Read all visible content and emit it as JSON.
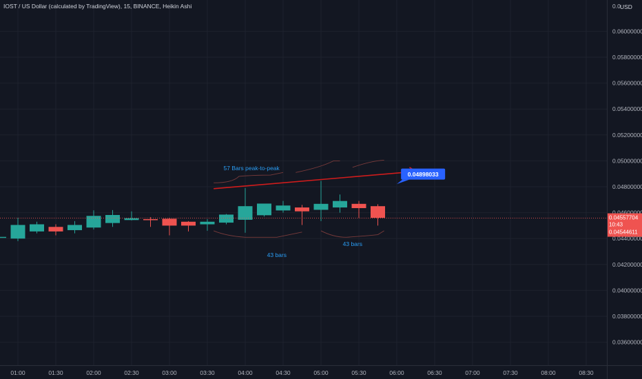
{
  "header": {
    "symbol_line": "IOST / US Dollar (calculated by TradingView), 15, BINANCE, Heikin Ashi",
    "currency": "USD"
  },
  "colors": {
    "background": "#131722",
    "grid": "#1e222d",
    "axis_text": "#b2b5be",
    "up": "#26a69a",
    "down": "#ef5350",
    "trendline": "#d11c1c",
    "annotation": "#2a9df4",
    "callout": "#2962ff",
    "price_label": "#ef5350"
  },
  "chart_data": {
    "type": "candlestick",
    "title": "IOST / US Dollar (calculated by TradingView), 15, BINANCE, Heikin Ashi",
    "x_axis": {
      "labels": [
        "01:00",
        "01:30",
        "02:00",
        "02:30",
        "03:00",
        "03:30",
        "04:00",
        "04:30",
        "05:00",
        "05:30",
        "06:00",
        "06:30",
        "07:00",
        "07:30",
        "08:00",
        "08:30"
      ]
    },
    "y_axis": {
      "ticks": [
        "0.06000000",
        "0.05800000",
        "0.05600000",
        "0.05400000",
        "0.05200000",
        "0.05000000",
        "0.04800000",
        "0.04600000",
        "0.04400000",
        "0.04200000",
        "0.04000000",
        "0.03800000",
        "0.03600000"
      ],
      "top_label": "0.0",
      "range": [
        0.0351,
        0.0622
      ]
    },
    "grid": true,
    "candles": [
      {
        "time": "00:45",
        "open": 0.04413,
        "high": 0.04413,
        "low": 0.044,
        "close": 0.04413,
        "dir": "up"
      },
      {
        "time": "01:00",
        "open": 0.044,
        "high": 0.0456,
        "low": 0.0438,
        "close": 0.04505,
        "dir": "up"
      },
      {
        "time": "01:15",
        "open": 0.04455,
        "high": 0.0453,
        "low": 0.0444,
        "close": 0.0451,
        "dir": "up"
      },
      {
        "time": "01:30",
        "open": 0.0449,
        "high": 0.0451,
        "low": 0.04425,
        "close": 0.04455,
        "dir": "down"
      },
      {
        "time": "01:45",
        "open": 0.04465,
        "high": 0.04535,
        "low": 0.0444,
        "close": 0.04505,
        "dir": "up"
      },
      {
        "time": "02:00",
        "open": 0.04485,
        "high": 0.04618,
        "low": 0.0447,
        "close": 0.04575,
        "dir": "up"
      },
      {
        "time": "02:15",
        "open": 0.0452,
        "high": 0.0462,
        "low": 0.0449,
        "close": 0.04582,
        "dir": "up"
      },
      {
        "time": "02:30",
        "open": 0.04543,
        "high": 0.0461,
        "low": 0.0454,
        "close": 0.04557,
        "dir": "up"
      },
      {
        "time": "02:45",
        "open": 0.0455,
        "high": 0.04565,
        "low": 0.0449,
        "close": 0.04545,
        "dir": "down"
      },
      {
        "time": "03:00",
        "open": 0.04553,
        "high": 0.0456,
        "low": 0.04425,
        "close": 0.045,
        "dir": "down"
      },
      {
        "time": "03:15",
        "open": 0.0453,
        "high": 0.04535,
        "low": 0.04455,
        "close": 0.045,
        "dir": "down"
      },
      {
        "time": "03:30",
        "open": 0.0451,
        "high": 0.0455,
        "low": 0.0446,
        "close": 0.0453,
        "dir": "up"
      },
      {
        "time": "03:45",
        "open": 0.04523,
        "high": 0.0459,
        "low": 0.0451,
        "close": 0.04585,
        "dir": "up"
      },
      {
        "time": "04:00",
        "open": 0.04545,
        "high": 0.0479,
        "low": 0.04445,
        "close": 0.0465,
        "dir": "up"
      },
      {
        "time": "04:15",
        "open": 0.0458,
        "high": 0.04665,
        "low": 0.0457,
        "close": 0.0467,
        "dir": "up"
      },
      {
        "time": "04:30",
        "open": 0.04617,
        "high": 0.0469,
        "low": 0.046,
        "close": 0.04655,
        "dir": "up"
      },
      {
        "time": "04:45",
        "open": 0.0464,
        "high": 0.0466,
        "low": 0.04505,
        "close": 0.0461,
        "dir": "down"
      },
      {
        "time": "05:00",
        "open": 0.04622,
        "high": 0.04845,
        "low": 0.04535,
        "close": 0.04668,
        "dir": "up"
      },
      {
        "time": "05:15",
        "open": 0.0464,
        "high": 0.0474,
        "low": 0.046,
        "close": 0.0469,
        "dir": "up"
      },
      {
        "time": "05:30",
        "open": 0.04668,
        "high": 0.0469,
        "low": 0.0456,
        "close": 0.04635,
        "dir": "down"
      },
      {
        "time": "05:45",
        "open": 0.0465,
        "high": 0.04665,
        "low": 0.045,
        "close": 0.0456,
        "dir": "down"
      }
    ],
    "trendline": {
      "from": {
        "time": "03:35",
        "price": 0.04785
      },
      "to": {
        "time": "06:15",
        "price": 0.04918
      }
    },
    "current_price": {
      "value": "0.04557704",
      "countdown": "10:43",
      "low": "0.04544611"
    },
    "annotations": {
      "peak_label": "57 Bars peak-to-peak",
      "trough_label_1": "43 bars",
      "trough_label_2": "43 bars",
      "callout_value": "0.04898033",
      "callout_price": 0.04898
    }
  }
}
